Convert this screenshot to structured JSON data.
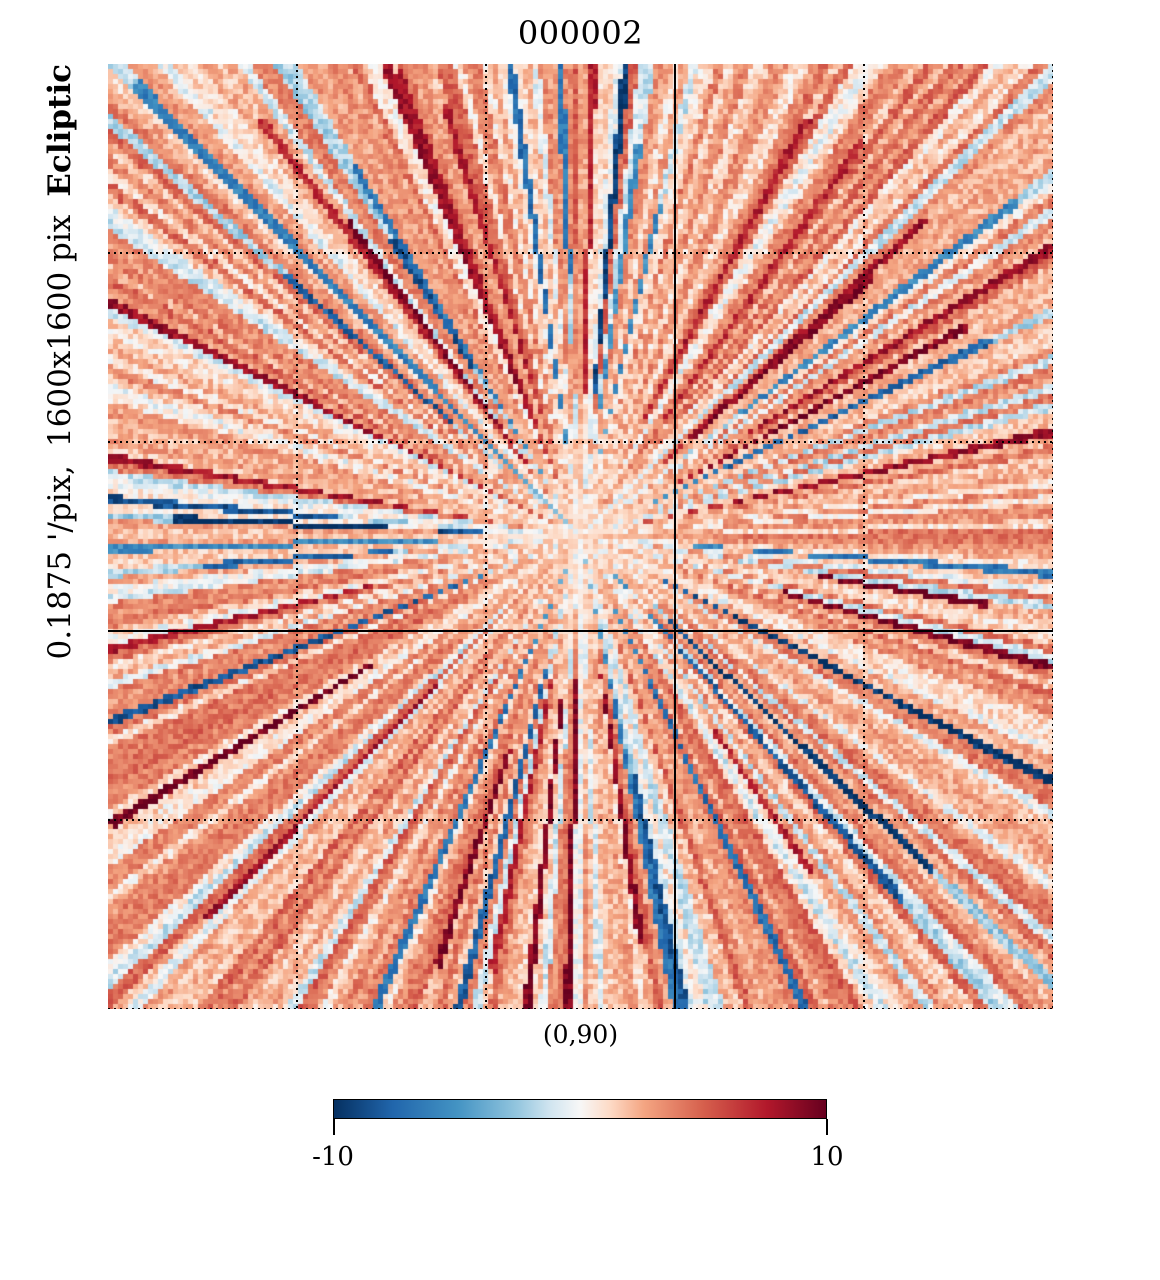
{
  "chart_data": {
    "type": "heatmap",
    "title": "000002",
    "projection": "gnomonic",
    "coordinate_system": "Ecliptic",
    "ylabel_parts": [
      "0.1875 '/pix,",
      "1600x1600 pix",
      "Ecliptic"
    ],
    "center_label": "(0,90)",
    "colormap": "RdBu_r",
    "colorbar": {
      "min": -10,
      "max": 10,
      "min_label": "-10",
      "max_label": "10"
    },
    "graticule": {
      "style": "dotted",
      "lines_per_axis": 4,
      "crosshair": "solid"
    },
    "pattern": "radial streaks emanating from center, mostly positive (red) with scattered negative (blue) streaks"
  }
}
